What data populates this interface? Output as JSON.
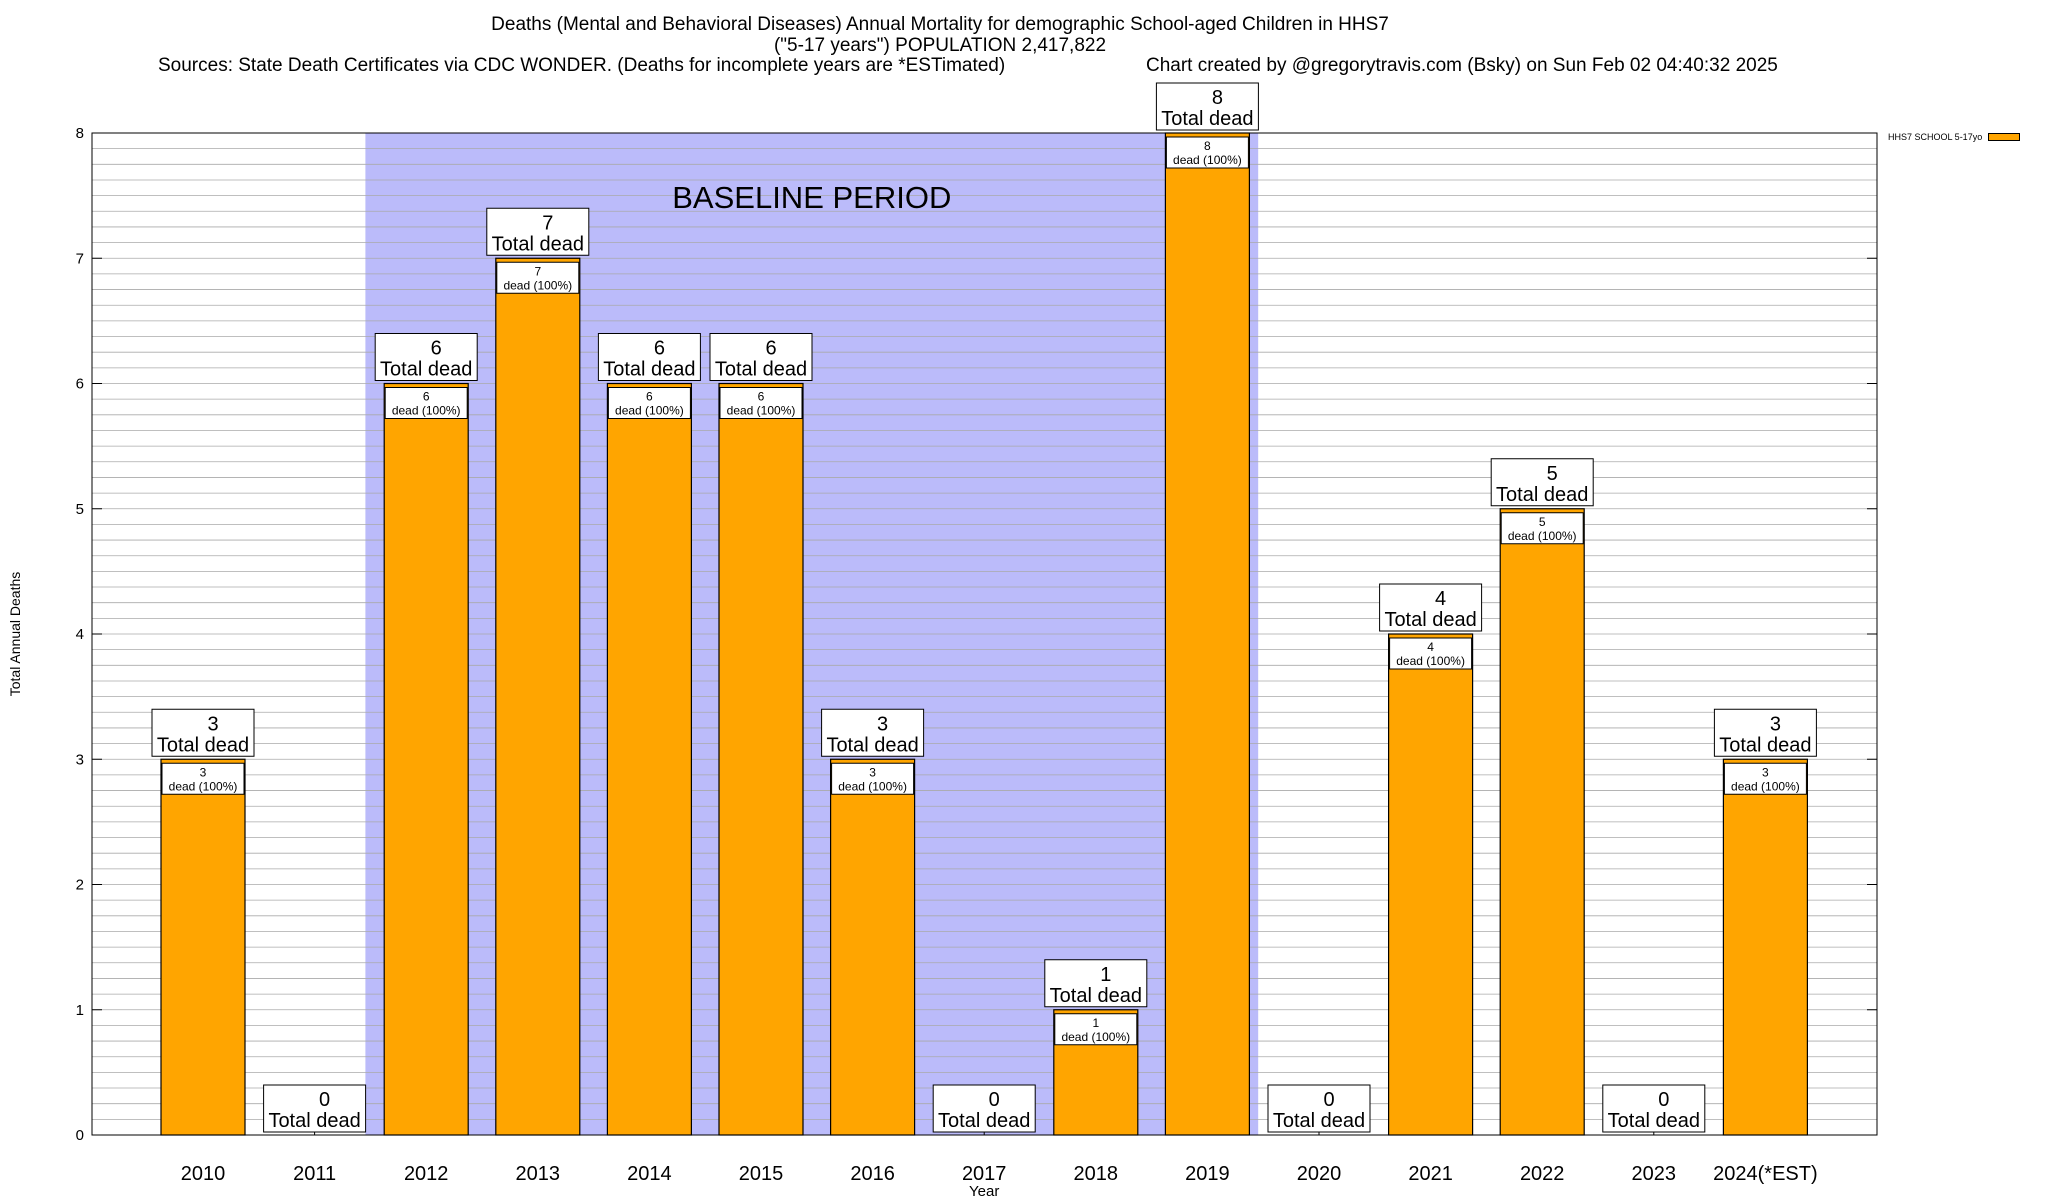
{
  "chart_data": {
    "type": "bar",
    "title": "Deaths (Mental and Behavioral Diseases) Annual Mortality for demographic School-aged Children in HHS7",
    "subtitle": "(\"5-17 years\") POPULATION 2,417,822",
    "sources": "Sources: State Death Certificates via CDC WONDER. (Deaths for incomplete years are *ESTimated)",
    "credit": "Chart created by @gregorytravis.com (Bsky) on Sun Feb 02 04:40:32 2025",
    "xlabel": "Year",
    "ylabel": "Total Annual Deaths",
    "ylim": [
      0,
      8
    ],
    "yticks": [
      "0",
      "1",
      "2",
      "3",
      "4",
      "5",
      "6",
      "7",
      "8"
    ],
    "categories": [
      "2010",
      "2011",
      "2012",
      "2013",
      "2014",
      "2015",
      "2016",
      "2017",
      "2018",
      "2019",
      "2020",
      "2021",
      "2022",
      "2023",
      "2024(*EST)"
    ],
    "series": [
      {
        "name": "HHS7 SCHOOL 5-17yo",
        "color": "#ffa500",
        "values": [
          3,
          0,
          6,
          7,
          6,
          6,
          3,
          0,
          1,
          8,
          0,
          4,
          5,
          0,
          3
        ]
      }
    ],
    "total_label": "Total dead",
    "inner_label": "dead (100%)",
    "baseline": {
      "label": "BASELINE PERIOD",
      "from": "2012",
      "to": "2019",
      "color": "#bbbbfa"
    },
    "grid": true,
    "legend_position": "top-right"
  }
}
